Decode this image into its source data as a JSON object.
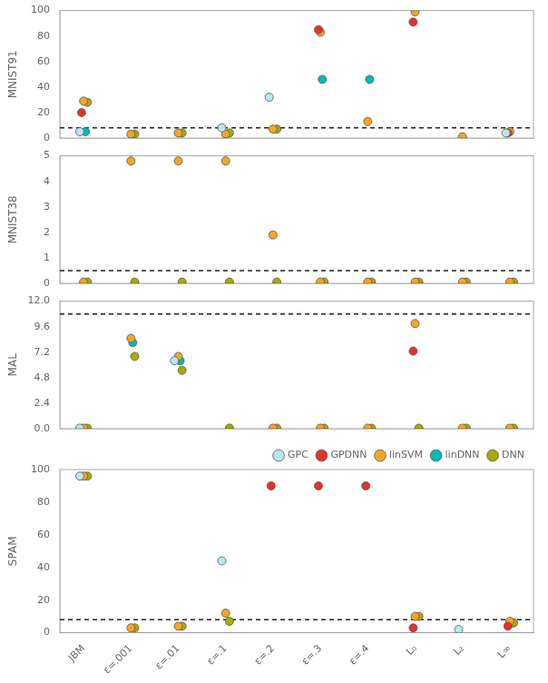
{
  "chart_data": [
    {
      "type": "scatter",
      "y_label": "MNIST91",
      "categories": [
        "JBM",
        "ε=.001",
        "ε=.01",
        "ε=.1",
        "ε=.2",
        "ε=.3",
        "ε=.4",
        "L₀",
        "L₂",
        "L∞"
      ],
      "series": [
        {
          "name": "GPC",
          "color": "#b8e8f0",
          "values": [
            5,
            null,
            null,
            8,
            32,
            null,
            null,
            null,
            null,
            4
          ]
        },
        {
          "name": "GPDNN",
          "color": "#e8302a",
          "values": [
            20,
            null,
            null,
            null,
            null,
            85,
            null,
            91,
            null,
            4
          ]
        },
        {
          "name": "linSVM",
          "color": "#f5a623",
          "values": [
            29,
            3,
            4,
            3,
            7,
            83,
            13,
            99,
            1,
            5
          ]
        },
        {
          "name": "linDNN",
          "color": "#00bbbb",
          "values": [
            5,
            null,
            null,
            null,
            null,
            46,
            46,
            null,
            null,
            null
          ]
        },
        {
          "name": "DNN",
          "color": "#aaaa00",
          "values": [
            28,
            3,
            4,
            4,
            7,
            null,
            null,
            null,
            null,
            null
          ]
        }
      ],
      "reference_line": 8,
      "ylim": [
        0,
        100
      ],
      "yticks": [
        0,
        20,
        40,
        60,
        80,
        100
      ],
      "grid": false,
      "tick_labels": "y"
    },
    {
      "type": "scatter",
      "y_label": "MNIST38",
      "categories": [
        "JBM",
        "ε=.001",
        "ε=.01",
        "ε=.1",
        "ε=.2",
        "ε=.3",
        "ε=.4",
        "L₀",
        "L₂",
        "L∞"
      ],
      "series": [
        {
          "name": "GPC",
          "color": "#b8e8f0",
          "values": [
            null,
            null,
            null,
            null,
            null,
            null,
            null,
            null,
            null,
            null
          ]
        },
        {
          "name": "GPDNN",
          "color": "#e8302a",
          "values": [
            null,
            null,
            null,
            null,
            null,
            null,
            null,
            null,
            null,
            null
          ]
        },
        {
          "name": "linSVM",
          "color": "#f5a623",
          "values": [
            0.05,
            4.8,
            4.8,
            4.8,
            1.9,
            0.05,
            0.05,
            0.05,
            0.05,
            0.05
          ]
        },
        {
          "name": "linDNN",
          "color": "#00bbbb",
          "values": [
            null,
            null,
            null,
            null,
            null,
            null,
            null,
            null,
            null,
            null
          ]
        },
        {
          "name": "DNN",
          "color": "#aaaa00",
          "values": [
            0.05,
            0.05,
            0.05,
            0.05,
            0.05,
            0.05,
            0.05,
            0.05,
            0.05,
            0.05
          ]
        }
      ],
      "reference_line": 0.5,
      "ylim": [
        0,
        5
      ],
      "yticks": [
        0,
        1,
        2,
        3,
        4,
        5
      ],
      "grid": false,
      "tick_labels": "y"
    },
    {
      "type": "scatter",
      "y_label": "MAL",
      "categories": [
        "JBM",
        "ε=.001",
        "ε=.01",
        "ε=.1",
        "ε=.2",
        "ε=.3",
        "ε=.4",
        "L₀",
        "L₂",
        "L∞"
      ],
      "series": [
        {
          "name": "GPC",
          "color": "#b8e8f0",
          "values": [
            0.05,
            null,
            6.4,
            null,
            null,
            null,
            null,
            null,
            null,
            null
          ]
        },
        {
          "name": "GPDNN",
          "color": "#e8302a",
          "values": [
            null,
            null,
            null,
            null,
            null,
            null,
            null,
            7.3,
            null,
            null
          ]
        },
        {
          "name": "linSVM",
          "color": "#f5a623",
          "values": [
            0.05,
            8.5,
            6.8,
            null,
            0.05,
            0.05,
            0.05,
            9.9,
            0.05,
            0.05
          ]
        },
        {
          "name": "linDNN",
          "color": "#00bbbb",
          "values": [
            null,
            8.1,
            6.4,
            null,
            null,
            null,
            null,
            null,
            null,
            null
          ]
        },
        {
          "name": "DNN",
          "color": "#aaaa00",
          "values": [
            0.05,
            6.8,
            5.5,
            0.05,
            0.05,
            0.05,
            0.05,
            0.05,
            0.05,
            0.05
          ]
        }
      ],
      "reference_line": 10.8,
      "ylim": [
        0,
        12
      ],
      "yticks": [
        {
          "value": 0,
          "label": "0.0"
        },
        2.4,
        4.8,
        7.2,
        9.6,
        {
          "value": 12,
          "label": "12.0"
        }
      ],
      "grid": false,
      "tick_labels": "y"
    },
    {
      "type": "scatter",
      "y_label": "SPAM",
      "categories": [
        "JBM",
        "ε=.001",
        "ε=.01",
        "ε=.1",
        "ε=.2",
        "ε=.3",
        "ε=.4",
        "L₀",
        "L₂",
        "L∞"
      ],
      "series": [
        {
          "name": "GPC",
          "color": "#b8e8f0",
          "values": [
            96,
            null,
            null,
            44,
            null,
            null,
            null,
            null,
            2,
            null
          ]
        },
        {
          "name": "GPDNN",
          "color": "#e8302a",
          "values": [
            null,
            null,
            null,
            null,
            90,
            90,
            90,
            3,
            null,
            4
          ]
        },
        {
          "name": "linSVM",
          "color": "#f5a623",
          "values": [
            96,
            3,
            4,
            12,
            null,
            null,
            null,
            10,
            null,
            7
          ]
        },
        {
          "name": "linDNN",
          "color": "#00bbbb",
          "values": [
            null,
            null,
            null,
            null,
            null,
            null,
            null,
            null,
            null,
            null
          ]
        },
        {
          "name": "DNN",
          "color": "#aaaa00",
          "values": [
            96,
            3,
            4,
            7,
            null,
            null,
            null,
            10,
            null,
            6
          ]
        }
      ],
      "reference_line": 8,
      "ylim": [
        0,
        100
      ],
      "yticks": [
        0,
        20,
        40,
        60,
        80,
        100
      ],
      "grid": false,
      "legend": "upper right"
    }
  ]
}
